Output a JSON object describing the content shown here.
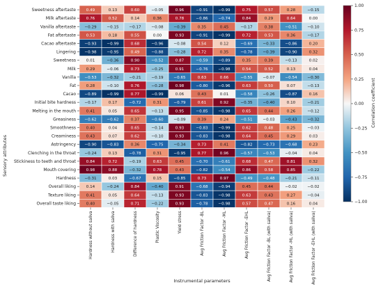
{
  "chart_data": {
    "type": "heatmap",
    "xlabel": "Instrumental parameters",
    "ylabel": "Sensory attributes",
    "colorbar_label": "Correlation coefficient",
    "colorbar_range": [
      -1.0,
      1.0
    ],
    "colorbar_ticks": [
      "1.00",
      "0.75",
      "0.50",
      "0.25",
      "0.00",
      "−0.25",
      "−0.50",
      "−0.75",
      "−1.00"
    ],
    "colormap": "RdBu_r",
    "grid": true,
    "columns": [
      "Hardness without saliva",
      "Hardness with saliva",
      "Difference of hardness",
      "Plastic Viscosity",
      "Yield stress",
      "Avg Friction Factor -BL",
      "Avg Friction Factor -ML",
      "Avg Friction Factor -EHL",
      "Avg Friction Factor -BL (with saliva)",
      "Avg Friction Factor -ML (with saliva)",
      "Avg Friction Factor -EHL (with saliva)"
    ],
    "rows": [
      "Sweetness aftertaste",
      "Milk aftertaste",
      "Vanilla aftertaste",
      "Fat aftertaste",
      "Cacao aftertaste",
      "Lingering",
      "Sweetness",
      "Milk",
      "Vanilla",
      "Fat",
      "Cacao",
      "Initial bite hardness",
      "Melting in the mouth",
      "Greasiness",
      "Smoothness",
      "Creaminess",
      "Astringency",
      "Clenching in the throat",
      "Stickiness to teeth and throat",
      "Mouth covering",
      "Hardness",
      "Overall liking",
      "Texture liking",
      "Overall taste liking"
    ],
    "values": [
      [
        0.49,
        0.13,
        0.6,
        -0.05,
        0.96,
        -0.91,
        -0.99,
        0.75,
        0.57,
        0.28,
        -0.15
      ],
      [
        0.76,
        0.52,
        0.14,
        0.36,
        0.78,
        -0.86,
        -0.74,
        0.84,
        0.29,
        0.64,
        0.0
      ],
      [
        -0.29,
        -0.15,
        -0.17,
        -0.08,
        -0.39,
        0.35,
        0.45,
        -0.17,
        0.38,
        -0.51,
        -0.1
      ],
      [
        0.53,
        0.18,
        0.55,
        0.0,
        0.93,
        -0.91,
        -0.99,
        0.72,
        0.53,
        0.36,
        -0.17
      ],
      [
        -0.93,
        -0.99,
        0.68,
        -0.96,
        -0.08,
        0.54,
        0.12,
        -0.69,
        -0.33,
        -0.86,
        0.2
      ],
      [
        -0.98,
        -0.95,
        0.49,
        -0.88,
        -0.28,
        0.72,
        0.35,
        -0.78,
        -0.39,
        -0.9,
        0.32
      ],
      [
        0.01,
        -0.36,
        0.9,
        -0.52,
        0.87,
        -0.59,
        -0.89,
        0.35,
        0.39,
        -0.13,
        0.02
      ],
      [
        0.29,
        -0.06,
        0.73,
        -0.25,
        0.91,
        -0.76,
        -0.98,
        0.54,
        0.52,
        0.13,
        0.04
      ],
      [
        -0.53,
        -0.32,
        -0.21,
        -0.19,
        -0.65,
        0.63,
        0.66,
        -0.55,
        -0.07,
        -0.54,
        -0.3
      ],
      [
        0.28,
        -0.1,
        0.76,
        -0.28,
        0.98,
        -0.8,
        -0.96,
        0.63,
        0.5,
        0.07,
        -0.13
      ],
      [
        -0.89,
        -0.99,
        0.77,
        -0.99,
        0.06,
        0.43,
        0.01,
        -0.58,
        -0.26,
        -0.87,
        0.16
      ],
      [
        -0.17,
        0.17,
        -0.72,
        0.31,
        -0.79,
        0.61,
        0.92,
        -0.35,
        -0.4,
        0.1,
        -0.21
      ],
      [
        0.41,
        0.05,
        0.65,
        -0.13,
        0.95,
        -0.85,
        -0.98,
        0.65,
        0.44,
        0.26,
        -0.12
      ],
      [
        -0.62,
        -0.62,
        0.37,
        -0.6,
        -0.09,
        0.39,
        0.24,
        -0.51,
        -0.03,
        -0.43,
        -0.32
      ],
      [
        0.4,
        0.04,
        0.65,
        -0.14,
        0.93,
        -0.83,
        -0.99,
        0.62,
        0.48,
        0.25,
        -0.03
      ],
      [
        0.43,
        0.07,
        0.62,
        -0.1,
        0.93,
        -0.83,
        -0.98,
        0.64,
        0.45,
        0.29,
        0.03
      ],
      [
        -0.9,
        -0.83,
        0.36,
        -0.75,
        -0.34,
        0.73,
        0.41,
        -0.82,
        -0.73,
        -0.68,
        0.23
      ],
      [
        -0.24,
        0.13,
        -0.78,
        0.31,
        -0.95,
        0.77,
        0.96,
        -0.57,
        -0.53,
        -0.04,
        0.04
      ],
      [
        0.84,
        0.72,
        -0.19,
        0.63,
        0.45,
        -0.7,
        -0.61,
        0.68,
        0.47,
        0.81,
        0.32
      ],
      [
        0.98,
        0.88,
        -0.32,
        0.78,
        0.43,
        -0.82,
        -0.54,
        0.86,
        0.58,
        0.85,
        -0.22
      ],
      [
        -0.31,
        0.03,
        -0.67,
        0.15,
        -0.85,
        0.73,
        0.97,
        -0.49,
        -0.48,
        -0.21,
        -0.11
      ],
      [
        0.14,
        -0.24,
        0.84,
        -0.4,
        0.91,
        -0.68,
        -0.94,
        0.45,
        0.44,
        -0.02,
        -0.02
      ],
      [
        0.41,
        0.05,
        0.64,
        -0.13,
        0.93,
        -0.83,
        -0.98,
        0.63,
        0.43,
        0.27,
        -0.04
      ],
      [
        0.4,
        -0.05,
        0.71,
        -0.22,
        0.93,
        -0.78,
        -0.98,
        0.57,
        0.47,
        0.16,
        0.04
      ]
    ]
  }
}
